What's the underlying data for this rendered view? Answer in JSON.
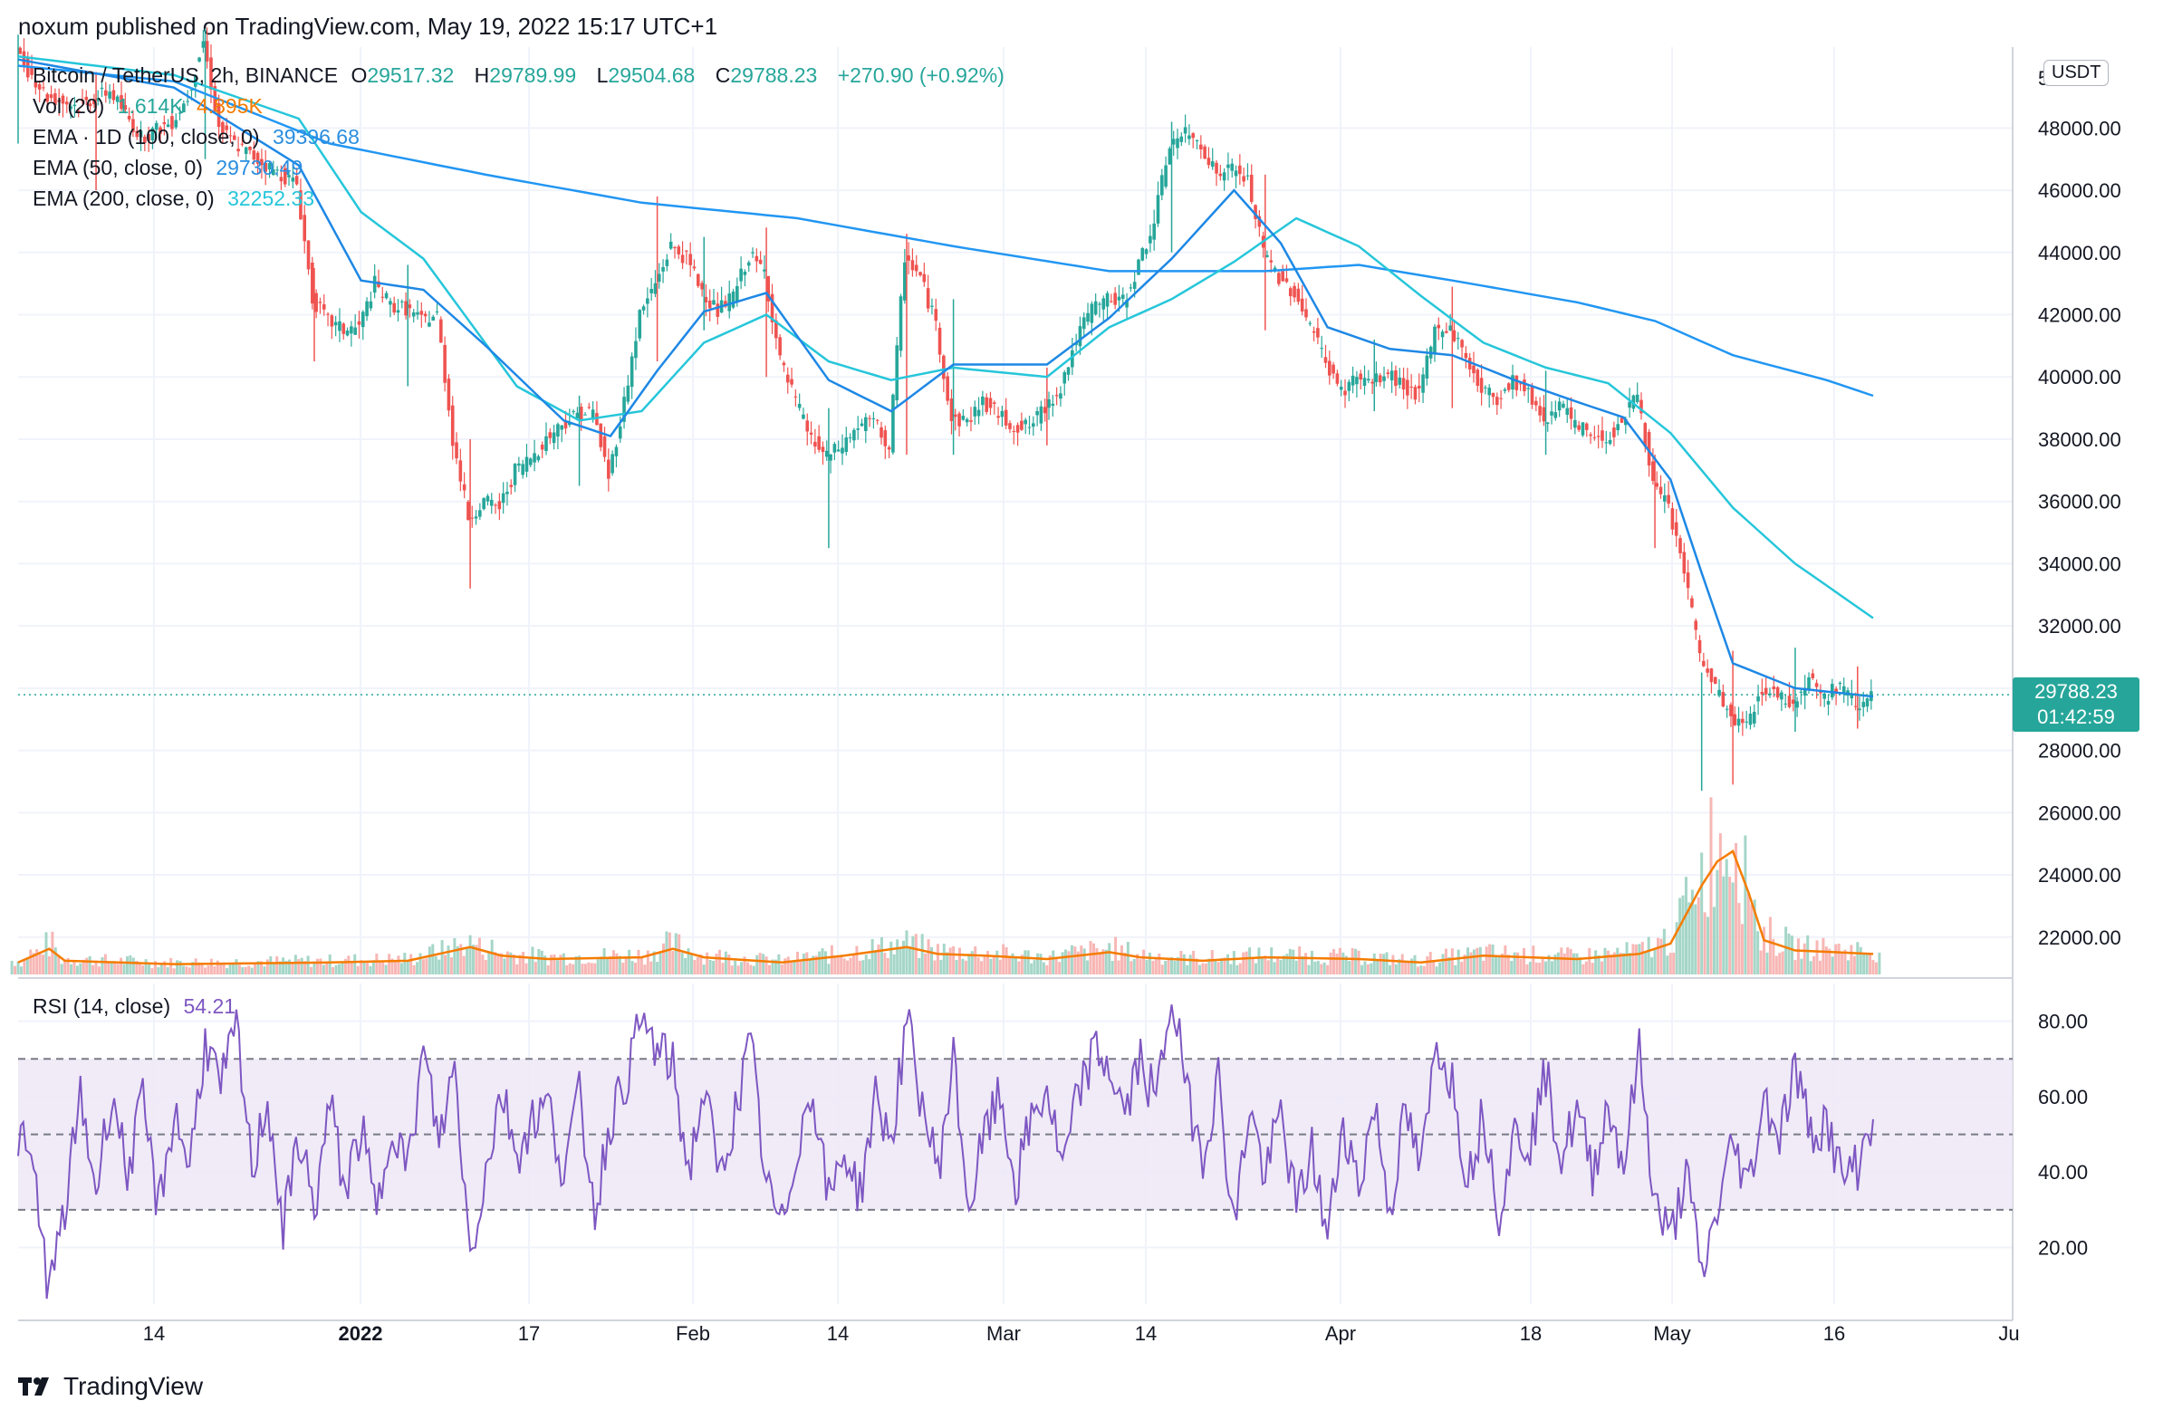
{
  "header": {
    "text": "noxum published on TradingView.com, May 19, 2022 15:17 UTC+1"
  },
  "legend": {
    "symbol": "Bitcoin / TetherUS, 2h, BINANCE",
    "open_label": "O",
    "open": "29517.32",
    "high_label": "H",
    "high": "29789.99",
    "low_label": "L",
    "low": "29504.68",
    "close_label": "C",
    "close": "29788.23",
    "change": "+270.90 (+0.92%)",
    "vol_label": "Vol (20)",
    "vol_value": "1.614K",
    "vol_ma": "4.895K",
    "ema100_label": "EMA · 1D (100, close, 0)",
    "ema100_value": "39396.68",
    "ema50_label": "EMA (50, close, 0)",
    "ema50_value": "29730.49",
    "ema200_label": "EMA (200, close, 0)",
    "ema200_value": "32252.33",
    "rsi_label": "RSI (14, close)",
    "rsi_value": "54.21"
  },
  "price_badge": {
    "price": "29788.23",
    "countdown": "01:42:59"
  },
  "currency": "USDT",
  "footer": {
    "brand": "TradingView"
  },
  "colors": {
    "up": "#26a69a",
    "down": "#ef5350",
    "ema100": "#2196f3",
    "ema50": "#1e88e5",
    "ema200": "#26c6da",
    "volume_ma": "#f57c00",
    "rsi": "#7e57c2",
    "rsi_band": "#ede7f6"
  },
  "chart_data": {
    "type": "candlestick",
    "price_axis": {
      "ticks": [
        "48000.00",
        "46000.00",
        "44000.00",
        "42000.00",
        "40000.00",
        "38000.00",
        "36000.00",
        "34000.00",
        "32000.00",
        "30000.00",
        "28000.00",
        "26000.00",
        "24000.00",
        "22000.00"
      ],
      "top_partial": "5",
      "ylim": [
        20800,
        50600
      ]
    },
    "rsi_axis": {
      "ticks": [
        "80.00",
        "60.00",
        "40.00",
        "20.00"
      ],
      "ylim": [
        5,
        90
      ],
      "upper_band": 70,
      "mid": 50,
      "lower_band": 30
    },
    "x_ticks": [
      "14",
      "2022",
      "17",
      "Feb",
      "14",
      "Mar",
      "14",
      "Apr",
      "18",
      "May",
      "16",
      "Ju"
    ],
    "price_path": [
      [
        0,
        50400
      ],
      [
        2,
        49000
      ],
      [
        4,
        48700
      ],
      [
        6,
        49200
      ],
      [
        8,
        47700
      ],
      [
        10,
        48200
      ],
      [
        11,
        49000
      ],
      [
        12,
        50800
      ],
      [
        13,
        48000
      ],
      [
        14,
        47500
      ],
      [
        16,
        46800
      ],
      [
        18,
        46200
      ],
      [
        19,
        42500
      ],
      [
        20,
        41800
      ],
      [
        21,
        41500
      ],
      [
        22,
        41600
      ],
      [
        23,
        43000
      ],
      [
        24,
        42300
      ],
      [
        25,
        42200
      ],
      [
        26,
        41800
      ],
      [
        27,
        42000
      ],
      [
        28,
        38000
      ],
      [
        29,
        35500
      ],
      [
        30,
        36000
      ],
      [
        31,
        35800
      ],
      [
        32,
        37000
      ],
      [
        33,
        37400
      ],
      [
        34,
        38000
      ],
      [
        35,
        38500
      ],
      [
        36,
        38800
      ],
      [
        37,
        38900
      ],
      [
        38,
        36800
      ],
      [
        39,
        39200
      ],
      [
        40,
        42000
      ],
      [
        41,
        43000
      ],
      [
        42,
        44200
      ],
      [
        43,
        43800
      ],
      [
        44,
        42800
      ],
      [
        45,
        42100
      ],
      [
        46,
        42600
      ],
      [
        47,
        43900
      ],
      [
        48,
        43400
      ],
      [
        49,
        40500
      ],
      [
        50,
        39200
      ],
      [
        51,
        38000
      ],
      [
        52,
        37400
      ],
      [
        53,
        37800
      ],
      [
        54,
        38400
      ],
      [
        55,
        38600
      ],
      [
        56,
        37700
      ],
      [
        57,
        43900
      ],
      [
        58,
        43200
      ],
      [
        59,
        41700
      ],
      [
        60,
        38600
      ],
      [
        61,
        38600
      ],
      [
        62,
        39200
      ],
      [
        63,
        38800
      ],
      [
        64,
        38400
      ],
      [
        65,
        38400
      ],
      [
        66,
        39000
      ],
      [
        67,
        39700
      ],
      [
        68,
        41200
      ],
      [
        69,
        42200
      ],
      [
        70,
        42500
      ],
      [
        71,
        42400
      ],
      [
        72,
        43600
      ],
      [
        73,
        45000
      ],
      [
        74,
        47500
      ],
      [
        75,
        47800
      ],
      [
        76,
        47500
      ],
      [
        77,
        46500
      ],
      [
        78,
        46700
      ],
      [
        79,
        46300
      ],
      [
        80,
        44000
      ],
      [
        81,
        43200
      ],
      [
        82,
        42700
      ],
      [
        83,
        41700
      ],
      [
        84,
        40500
      ],
      [
        85,
        39500
      ],
      [
        86,
        40000
      ],
      [
        87,
        39800
      ],
      [
        88,
        40100
      ],
      [
        89,
        39700
      ],
      [
        90,
        39400
      ],
      [
        91,
        41500
      ],
      [
        92,
        41600
      ],
      [
        93,
        40600
      ],
      [
        94,
        39600
      ],
      [
        95,
        39300
      ],
      [
        96,
        39900
      ],
      [
        97,
        39500
      ],
      [
        98,
        38600
      ],
      [
        99,
        39200
      ],
      [
        100,
        38400
      ],
      [
        101,
        38200
      ],
      [
        102,
        38000
      ],
      [
        103,
        38600
      ],
      [
        104,
        39500
      ],
      [
        105,
        36500
      ],
      [
        106,
        35800
      ],
      [
        107,
        33800
      ],
      [
        108,
        31000
      ],
      [
        109,
        30000
      ],
      [
        110,
        29000
      ],
      [
        111,
        28800
      ],
      [
        112,
        30000
      ],
      [
        113,
        29800
      ],
      [
        114,
        29500
      ],
      [
        115,
        30400
      ],
      [
        116,
        29700
      ],
      [
        117,
        30100
      ],
      [
        118,
        29500
      ],
      [
        119,
        29788
      ]
    ],
    "price_range": [
      [
        0,
        47500,
        51000
      ],
      [
        5,
        46000,
        49800
      ],
      [
        12,
        47000,
        51200
      ],
      [
        19,
        40500,
        43500
      ],
      [
        25,
        39700,
        43600
      ],
      [
        29,
        33200,
        38000
      ],
      [
        36,
        36500,
        39400
      ],
      [
        41,
        40500,
        45800
      ],
      [
        44,
        41500,
        44500
      ],
      [
        48,
        40000,
        44800
      ],
      [
        52,
        34500,
        39000
      ],
      [
        57,
        37500,
        44600
      ],
      [
        60,
        37500,
        42500
      ],
      [
        66,
        37800,
        40300
      ],
      [
        74,
        44000,
        48200
      ],
      [
        80,
        41500,
        46500
      ],
      [
        87,
        38900,
        41200
      ],
      [
        92,
        39000,
        42900
      ],
      [
        98,
        37500,
        40200
      ],
      [
        105,
        34500,
        37500
      ],
      [
        108,
        26700,
        30500
      ],
      [
        110,
        26900,
        31200
      ],
      [
        114,
        28600,
        31300
      ],
      [
        118,
        28700,
        30700
      ]
    ],
    "ema100_1d_path": [
      [
        0,
        50000
      ],
      [
        10,
        49500
      ],
      [
        20,
        47500
      ],
      [
        30,
        46500
      ],
      [
        40,
        45600
      ],
      [
        50,
        45100
      ],
      [
        60,
        44200
      ],
      [
        70,
        43400
      ],
      [
        80,
        43400
      ],
      [
        86,
        43600
      ],
      [
        92,
        43100
      ],
      [
        100,
        42400
      ],
      [
        105,
        41800
      ],
      [
        110,
        40700
      ],
      [
        116,
        39900
      ],
      [
        119,
        39397
      ]
    ],
    "ema50_path": [
      [
        0,
        50200
      ],
      [
        10,
        49300
      ],
      [
        18,
        46800
      ],
      [
        22,
        43100
      ],
      [
        26,
        42800
      ],
      [
        30,
        41000
      ],
      [
        35,
        38600
      ],
      [
        38,
        38100
      ],
      [
        41,
        40200
      ],
      [
        44,
        42100
      ],
      [
        48,
        42700
      ],
      [
        52,
        39900
      ],
      [
        56,
        38900
      ],
      [
        60,
        40400
      ],
      [
        66,
        40400
      ],
      [
        70,
        41900
      ],
      [
        74,
        43800
      ],
      [
        78,
        46000
      ],
      [
        81,
        44300
      ],
      [
        84,
        41600
      ],
      [
        88,
        40900
      ],
      [
        92,
        40700
      ],
      [
        96,
        39900
      ],
      [
        100,
        39200
      ],
      [
        103,
        38700
      ],
      [
        106,
        36700
      ],
      [
        108,
        33700
      ],
      [
        110,
        30800
      ],
      [
        114,
        30000
      ],
      [
        119,
        29730
      ]
    ],
    "ema200_path": [
      [
        0,
        50300
      ],
      [
        10,
        49700
      ],
      [
        18,
        48300
      ],
      [
        22,
        45300
      ],
      [
        26,
        43800
      ],
      [
        32,
        39700
      ],
      [
        36,
        38600
      ],
      [
        40,
        38900
      ],
      [
        44,
        41100
      ],
      [
        48,
        42000
      ],
      [
        52,
        40500
      ],
      [
        56,
        39900
      ],
      [
        60,
        40300
      ],
      [
        66,
        40000
      ],
      [
        70,
        41600
      ],
      [
        74,
        42500
      ],
      [
        78,
        43700
      ],
      [
        82,
        45100
      ],
      [
        86,
        44200
      ],
      [
        90,
        42600
      ],
      [
        94,
        41100
      ],
      [
        98,
        40300
      ],
      [
        102,
        39800
      ],
      [
        106,
        38200
      ],
      [
        110,
        35800
      ],
      [
        114,
        34000
      ],
      [
        119,
        32252
      ]
    ],
    "rsi_path": [
      [
        0,
        50
      ],
      [
        1,
        40
      ],
      [
        2,
        8
      ],
      [
        3,
        30
      ],
      [
        4,
        60
      ],
      [
        5,
        35
      ],
      [
        6,
        62
      ],
      [
        7,
        40
      ],
      [
        8,
        58
      ],
      [
        9,
        30
      ],
      [
        10,
        56
      ],
      [
        11,
        42
      ],
      [
        12,
        75
      ],
      [
        13,
        62
      ],
      [
        14,
        78
      ],
      [
        15,
        40
      ],
      [
        16,
        60
      ],
      [
        17,
        24
      ],
      [
        18,
        50
      ],
      [
        19,
        30
      ],
      [
        20,
        58
      ],
      [
        21,
        35
      ],
      [
        22,
        52
      ],
      [
        23,
        28
      ],
      [
        24,
        55
      ],
      [
        25,
        40
      ],
      [
        26,
        72
      ],
      [
        27,
        48
      ],
      [
        28,
        68
      ],
      [
        29,
        18
      ],
      [
        30,
        40
      ],
      [
        31,
        62
      ],
      [
        32,
        45
      ],
      [
        33,
        54
      ],
      [
        34,
        58
      ],
      [
        35,
        40
      ],
      [
        36,
        60
      ],
      [
        37,
        30
      ],
      [
        38,
        54
      ],
      [
        39,
        65
      ],
      [
        40,
        80
      ],
      [
        41,
        72
      ],
      [
        42,
        68
      ],
      [
        43,
        40
      ],
      [
        44,
        62
      ],
      [
        45,
        38
      ],
      [
        46,
        56
      ],
      [
        47,
        74
      ],
      [
        48,
        36
      ],
      [
        49,
        25
      ],
      [
        50,
        48
      ],
      [
        51,
        62
      ],
      [
        52,
        32
      ],
      [
        53,
        46
      ],
      [
        54,
        34
      ],
      [
        55,
        60
      ],
      [
        56,
        48
      ],
      [
        57,
        80
      ],
      [
        58,
        58
      ],
      [
        59,
        40
      ],
      [
        60,
        70
      ],
      [
        61,
        30
      ],
      [
        62,
        50
      ],
      [
        63,
        60
      ],
      [
        64,
        36
      ],
      [
        65,
        54
      ],
      [
        66,
        62
      ],
      [
        67,
        40
      ],
      [
        68,
        60
      ],
      [
        69,
        72
      ],
      [
        70,
        68
      ],
      [
        71,
        55
      ],
      [
        72,
        70
      ],
      [
        73,
        58
      ],
      [
        74,
        88
      ],
      [
        75,
        60
      ],
      [
        76,
        45
      ],
      [
        77,
        65
      ],
      [
        78,
        25
      ],
      [
        79,
        58
      ],
      [
        80,
        38
      ],
      [
        81,
        56
      ],
      [
        82,
        30
      ],
      [
        83,
        46
      ],
      [
        84,
        22
      ],
      [
        85,
        54
      ],
      [
        86,
        36
      ],
      [
        87,
        58
      ],
      [
        88,
        30
      ],
      [
        89,
        56
      ],
      [
        90,
        40
      ],
      [
        91,
        75
      ],
      [
        92,
        64
      ],
      [
        93,
        38
      ],
      [
        94,
        56
      ],
      [
        95,
        30
      ],
      [
        96,
        50
      ],
      [
        97,
        48
      ],
      [
        98,
        66
      ],
      [
        99,
        44
      ],
      [
        100,
        56
      ],
      [
        101,
        40
      ],
      [
        102,
        58
      ],
      [
        103,
        42
      ],
      [
        104,
        72
      ],
      [
        105,
        32
      ],
      [
        106,
        22
      ],
      [
        107,
        40
      ],
      [
        108,
        12
      ],
      [
        109,
        30
      ],
      [
        110,
        48
      ],
      [
        111,
        36
      ],
      [
        112,
        60
      ],
      [
        113,
        50
      ],
      [
        114,
        68
      ],
      [
        115,
        50
      ],
      [
        116,
        54
      ],
      [
        117,
        38
      ],
      [
        118,
        42
      ],
      [
        119,
        54
      ]
    ],
    "volume_ma_path": [
      [
        0,
        0.35
      ],
      [
        2,
        0.75
      ],
      [
        3,
        0.4
      ],
      [
        10,
        0.3
      ],
      [
        20,
        0.35
      ],
      [
        25,
        0.4
      ],
      [
        29,
        0.8
      ],
      [
        31,
        0.55
      ],
      [
        34,
        0.45
      ],
      [
        40,
        0.5
      ],
      [
        42,
        0.75
      ],
      [
        44,
        0.5
      ],
      [
        49,
        0.35
      ],
      [
        53,
        0.55
      ],
      [
        57,
        0.8
      ],
      [
        59,
        0.6
      ],
      [
        62,
        0.55
      ],
      [
        66,
        0.45
      ],
      [
        70,
        0.65
      ],
      [
        72,
        0.5
      ],
      [
        76,
        0.4
      ],
      [
        80,
        0.5
      ],
      [
        86,
        0.45
      ],
      [
        90,
        0.35
      ],
      [
        94,
        0.55
      ],
      [
        100,
        0.45
      ],
      [
        104,
        0.6
      ],
      [
        106,
        0.9
      ],
      [
        108,
        2.6
      ],
      [
        109,
        3.3
      ],
      [
        110,
        3.6
      ],
      [
        111,
        2.4
      ],
      [
        112,
        1.0
      ],
      [
        114,
        0.7
      ],
      [
        119,
        0.6
      ]
    ]
  }
}
